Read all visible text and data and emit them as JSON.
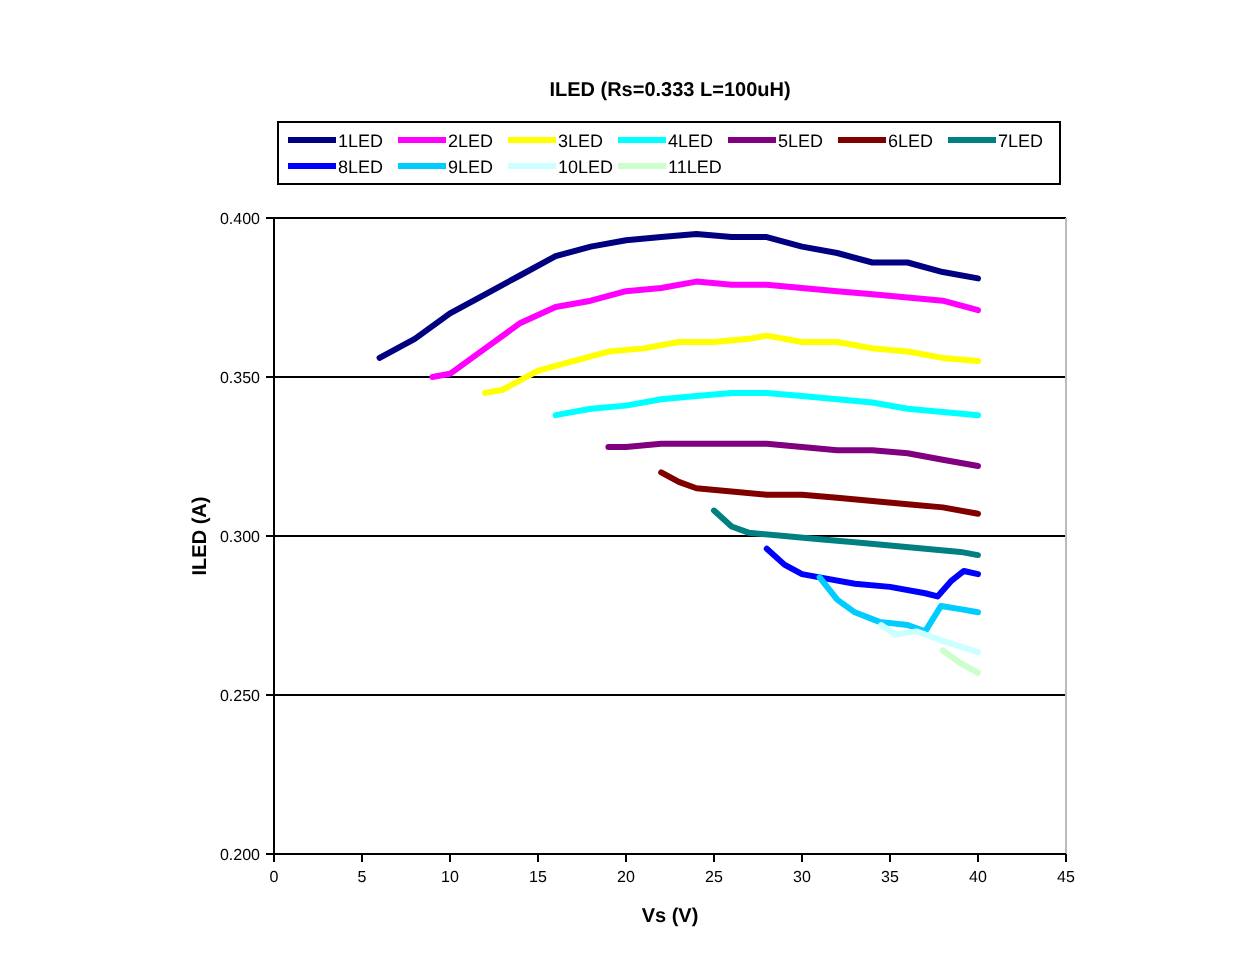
{
  "chart_data": {
    "type": "line",
    "title": "ILED (Rs=0.333 L=100uH)",
    "xlabel": "Vs (V)",
    "ylabel": "ILED (A)",
    "xlim": [
      0,
      45
    ],
    "xticks": [
      0,
      5,
      10,
      15,
      20,
      25,
      30,
      35,
      40,
      45
    ],
    "ylim": [
      0.2,
      0.4
    ],
    "yticks": [
      {
        "value": 0.2,
        "label": "0.200"
      },
      {
        "value": 0.25,
        "label": "0.250"
      },
      {
        "value": 0.3,
        "label": "0.300"
      },
      {
        "value": 0.35,
        "label": "0.350"
      },
      {
        "value": 0.4,
        "label": "0.400"
      }
    ],
    "grid": "y",
    "legend": "top",
    "marker": "none",
    "line_style": "solid",
    "series": [
      {
        "name": "1LED",
        "color": "#000080",
        "x": [
          6,
          8,
          10,
          12,
          14,
          16,
          18,
          20,
          22,
          24,
          26,
          28,
          30,
          32,
          34,
          36,
          38,
          40
        ],
        "values": [
          0.356,
          0.362,
          0.37,
          0.376,
          0.382,
          0.388,
          0.391,
          0.393,
          0.394,
          0.395,
          0.394,
          0.394,
          0.391,
          0.389,
          0.386,
          0.386,
          0.383,
          0.381
        ]
      },
      {
        "name": "2LED",
        "color": "#ff00ff",
        "x": [
          9,
          10,
          12,
          14,
          16,
          18,
          20,
          22,
          24,
          26,
          28,
          30,
          32,
          34,
          36,
          38,
          40
        ],
        "values": [
          0.35,
          0.351,
          0.359,
          0.367,
          0.372,
          0.374,
          0.377,
          0.378,
          0.38,
          0.379,
          0.379,
          0.378,
          0.377,
          0.376,
          0.375,
          0.374,
          0.371
        ]
      },
      {
        "name": "3LED",
        "color": "#ffff00",
        "x": [
          12,
          13,
          15,
          17,
          19,
          21,
          23,
          25,
          27,
          28,
          30,
          32,
          34,
          36,
          38,
          40
        ],
        "values": [
          0.345,
          0.346,
          0.352,
          0.355,
          0.358,
          0.359,
          0.361,
          0.361,
          0.362,
          0.363,
          0.361,
          0.361,
          0.359,
          0.358,
          0.356,
          0.355
        ]
      },
      {
        "name": "4LED",
        "color": "#00ffff",
        "x": [
          16,
          18,
          20,
          22,
          24,
          26,
          28,
          30,
          32,
          34,
          36,
          38,
          40
        ],
        "values": [
          0.338,
          0.34,
          0.341,
          0.343,
          0.344,
          0.345,
          0.345,
          0.344,
          0.343,
          0.342,
          0.34,
          0.339,
          0.338
        ]
      },
      {
        "name": "5LED",
        "color": "#800080",
        "x": [
          19,
          20,
          22,
          24,
          26,
          28,
          30,
          32,
          34,
          36,
          38,
          40
        ],
        "values": [
          0.328,
          0.328,
          0.329,
          0.329,
          0.329,
          0.329,
          0.328,
          0.327,
          0.327,
          0.326,
          0.324,
          0.322
        ]
      },
      {
        "name": "6LED",
        "color": "#800000",
        "x": [
          22,
          23,
          24,
          26,
          28,
          30,
          32,
          34,
          36,
          38,
          40
        ],
        "values": [
          0.32,
          0.317,
          0.315,
          0.314,
          0.313,
          0.313,
          0.312,
          0.311,
          0.31,
          0.309,
          0.307
        ]
      },
      {
        "name": "7LED",
        "color": "#008080",
        "x": [
          25,
          26,
          27,
          29,
          31,
          33,
          35,
          37,
          39,
          40
        ],
        "values": [
          0.308,
          0.303,
          0.301,
          0.3,
          0.299,
          0.298,
          0.297,
          0.296,
          0.295,
          0.294
        ]
      },
      {
        "name": "8LED",
        "color": "#0000ff",
        "x": [
          28,
          29,
          30,
          31,
          33,
          35,
          37,
          37.7,
          38.5,
          39.2,
          40
        ],
        "values": [
          0.296,
          0.291,
          0.288,
          0.287,
          0.285,
          0.284,
          0.282,
          0.281,
          0.286,
          0.289,
          0.288
        ]
      },
      {
        "name": "9LED",
        "color": "#00ccff",
        "x": [
          31,
          32,
          33,
          34.4,
          36,
          37,
          37.9,
          39,
          40
        ],
        "values": [
          0.287,
          0.28,
          0.276,
          0.273,
          0.272,
          0.27,
          0.278,
          0.277,
          0.276
        ]
      },
      {
        "name": "10LED",
        "color": "#ccffff",
        "x": [
          34.5,
          35.3,
          36.5,
          38,
          40
        ],
        "values": [
          0.272,
          0.269,
          0.27,
          0.267,
          0.2635
        ]
      },
      {
        "name": "11LED",
        "color": "#ccffcc",
        "x": [
          38,
          39,
          40
        ],
        "values": [
          0.264,
          0.26,
          0.257
        ]
      }
    ]
  }
}
